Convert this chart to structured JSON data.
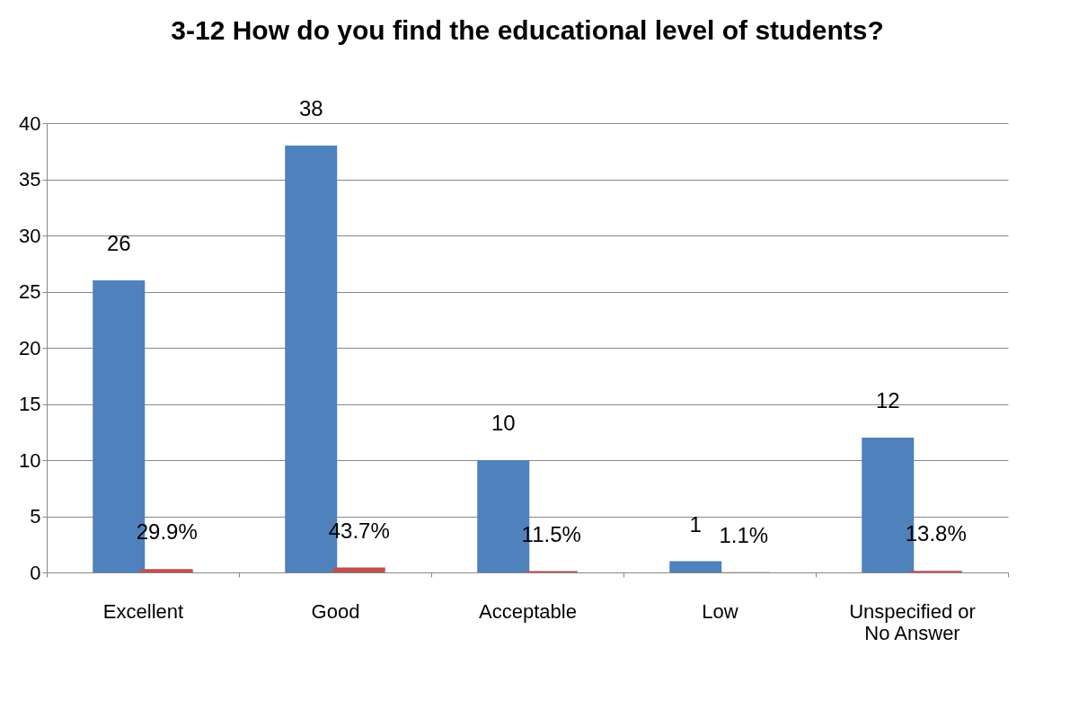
{
  "chart_data": {
    "type": "bar",
    "title": "3-12 How do you find the educational level of students?",
    "categories": [
      "Excellent",
      "Good",
      "Acceptable",
      "Low",
      "Unspecified or No Answer"
    ],
    "series": [
      {
        "color": "#4f81bd",
        "values": [
          26,
          38,
          10,
          1,
          12
        ],
        "value_labels": [
          "26",
          "38",
          "10",
          "1",
          "12"
        ]
      },
      {
        "color": "#c0504d",
        "values": [
          0.299,
          0.437,
          0.115,
          0.011,
          0.138
        ],
        "value_labels": [
          "29.9%",
          "43.7%",
          "11.5%",
          "1.1%",
          "13.8%"
        ]
      }
    ],
    "ylim": [
      0,
      40
    ],
    "yticks": [
      0,
      5,
      10,
      15,
      20,
      25,
      30,
      35,
      40
    ],
    "grid": "y",
    "legend": false
  }
}
